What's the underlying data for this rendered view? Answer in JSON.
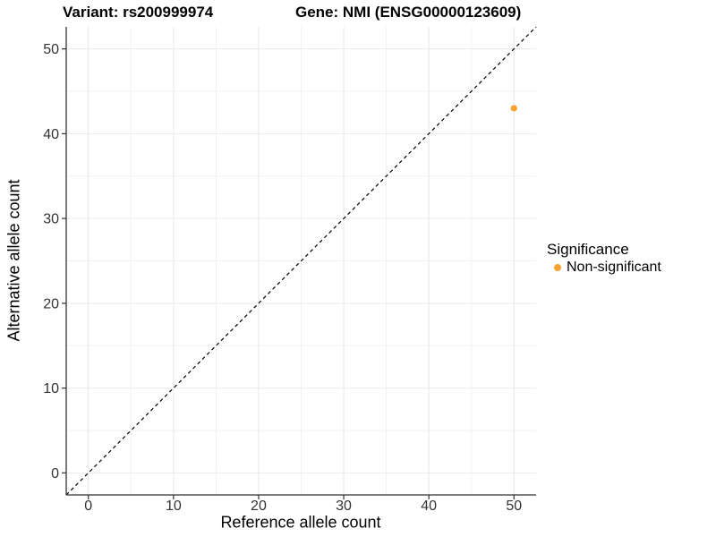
{
  "chart_data": {
    "type": "scatter",
    "title_left": "Variant: rs200999974",
    "title_right": "Gene: NMI (ENSG00000123609)",
    "xlabel": "Reference allele count",
    "ylabel": "Alternative allele count",
    "xlim": [
      -2.6,
      52.6
    ],
    "ylim": [
      -2.6,
      52.6
    ],
    "xticks": [
      0,
      10,
      20,
      30,
      40,
      50
    ],
    "yticks": [
      0,
      10,
      20,
      30,
      40,
      50
    ],
    "x_minor_ticks": [
      5,
      15,
      25,
      35,
      45
    ],
    "y_minor_ticks": [
      5,
      15,
      25,
      35,
      45
    ],
    "grid": "major and minor, light gray on white",
    "identity_line": {
      "style": "dashed",
      "color": "#000000",
      "from": [
        -2.6,
        -2.6
      ],
      "to": [
        52.6,
        52.6
      ]
    },
    "series": [
      {
        "name": "Non-significant",
        "color": "#F9A12E",
        "point_radius": 3.6,
        "points": [
          {
            "x": 50,
            "y": 43
          }
        ]
      }
    ],
    "legend": {
      "title": "Significance",
      "position": "right",
      "items": [
        {
          "label": "Non-significant",
          "color": "#F9A12E"
        }
      ]
    }
  },
  "styles": {
    "background": "#ffffff",
    "grid_major": "#e9e9e9",
    "grid_minor": "#f1f1f1",
    "axis_line": "#333333",
    "tick_mark": "#333333",
    "tick_label_color": "#333333",
    "text_color": "#000000",
    "point_color": "#F9A12E"
  }
}
